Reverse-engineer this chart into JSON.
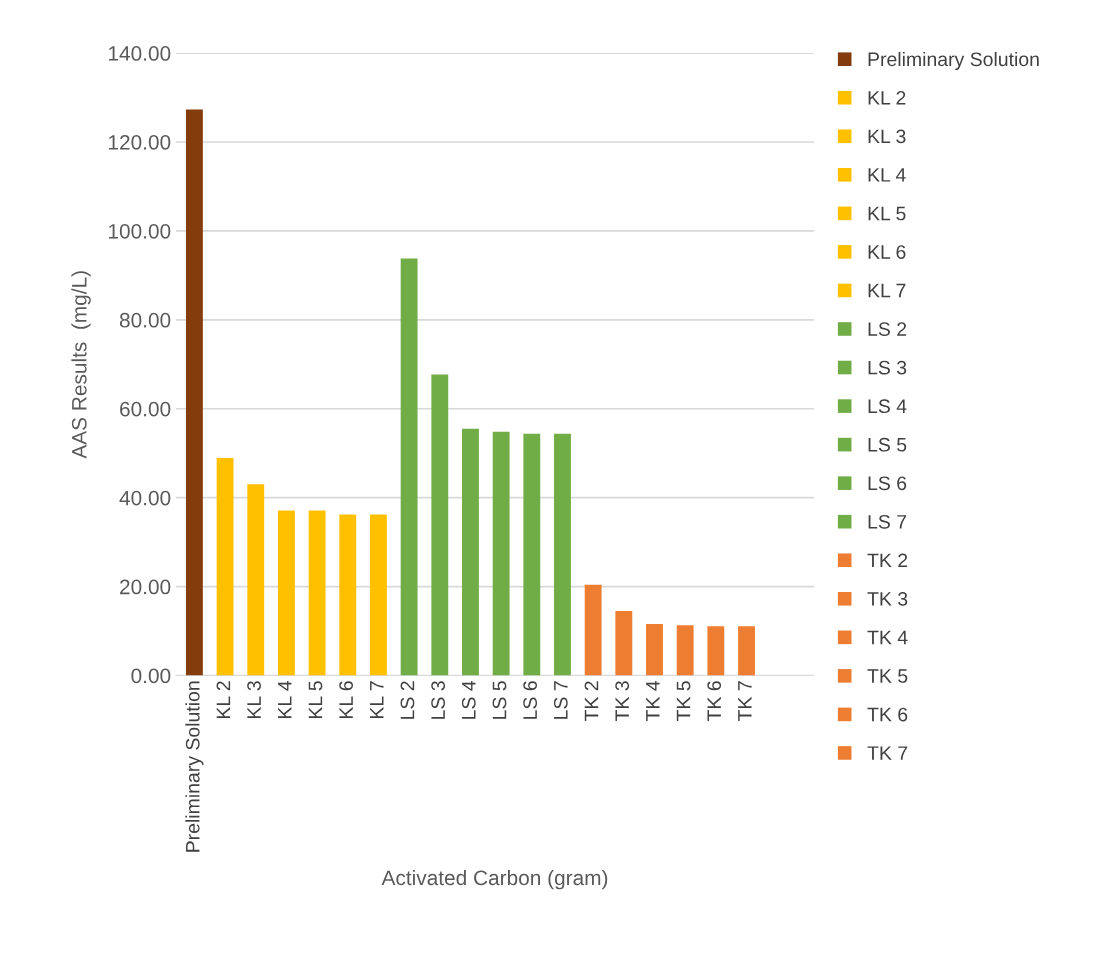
{
  "chart_data": {
    "type": "bar",
    "xlabel": "Activated Carbon (gram)",
    "ylabel": "AAS Results  (mg/L)",
    "categories": [
      "Preliminary Solution",
      "KL 2",
      "KL 3",
      "KL 4",
      "KL 5",
      "KL 6",
      "KL 7",
      "LS 2",
      "LS 3",
      "LS 4",
      "LS 5",
      "LS 6",
      "LS 7",
      "TK 2",
      "TK 3",
      "TK 4",
      "TK 5",
      "TK 6",
      "TK 7"
    ],
    "series": [
      {
        "name": "Preliminary Solution",
        "color": "#843c0c",
        "values": [
          127.3,
          null,
          null,
          null,
          null,
          null,
          null,
          null,
          null,
          null,
          null,
          null,
          null,
          null,
          null,
          null,
          null,
          null,
          null
        ]
      },
      {
        "name": "KL 2",
        "color": "#ffc000",
        "values": [
          null,
          48.9,
          null,
          null,
          null,
          null,
          null,
          null,
          null,
          null,
          null,
          null,
          null,
          null,
          null,
          null,
          null,
          null,
          null
        ]
      },
      {
        "name": "KL 3",
        "color": "#ffc000",
        "values": [
          null,
          null,
          43.0,
          null,
          null,
          null,
          null,
          null,
          null,
          null,
          null,
          null,
          null,
          null,
          null,
          null,
          null,
          null,
          null
        ]
      },
      {
        "name": "KL 4",
        "color": "#ffc000",
        "values": [
          null,
          null,
          null,
          37.1,
          null,
          null,
          null,
          null,
          null,
          null,
          null,
          null,
          null,
          null,
          null,
          null,
          null,
          null,
          null
        ]
      },
      {
        "name": "KL 5",
        "color": "#ffc000",
        "values": [
          null,
          null,
          null,
          null,
          37.1,
          null,
          null,
          null,
          null,
          null,
          null,
          null,
          null,
          null,
          null,
          null,
          null,
          null,
          null
        ]
      },
      {
        "name": "KL 6",
        "color": "#ffc000",
        "values": [
          null,
          null,
          null,
          null,
          null,
          36.2,
          null,
          null,
          null,
          null,
          null,
          null,
          null,
          null,
          null,
          null,
          null,
          null,
          null
        ]
      },
      {
        "name": "KL 7",
        "color": "#ffc000",
        "values": [
          null,
          null,
          null,
          null,
          null,
          null,
          36.2,
          null,
          null,
          null,
          null,
          null,
          null,
          null,
          null,
          null,
          null,
          null,
          null
        ]
      },
      {
        "name": "LS 2",
        "color": "#70ad47",
        "values": [
          null,
          null,
          null,
          null,
          null,
          null,
          null,
          93.8,
          null,
          null,
          null,
          null,
          null,
          null,
          null,
          null,
          null,
          null,
          null
        ]
      },
      {
        "name": "LS 3",
        "color": "#70ad47",
        "values": [
          null,
          null,
          null,
          null,
          null,
          null,
          null,
          null,
          67.7,
          null,
          null,
          null,
          null,
          null,
          null,
          null,
          null,
          null,
          null
        ]
      },
      {
        "name": "LS 4",
        "color": "#70ad47",
        "values": [
          null,
          null,
          null,
          null,
          null,
          null,
          null,
          null,
          null,
          55.5,
          null,
          null,
          null,
          null,
          null,
          null,
          null,
          null,
          null
        ]
      },
      {
        "name": "LS 5",
        "color": "#70ad47",
        "values": [
          null,
          null,
          null,
          null,
          null,
          null,
          null,
          null,
          null,
          null,
          54.8,
          null,
          null,
          null,
          null,
          null,
          null,
          null,
          null
        ]
      },
      {
        "name": "LS 6",
        "color": "#70ad47",
        "values": [
          null,
          null,
          null,
          null,
          null,
          null,
          null,
          null,
          null,
          null,
          null,
          54.4,
          null,
          null,
          null,
          null,
          null,
          null,
          null
        ]
      },
      {
        "name": "LS 7",
        "color": "#70ad47",
        "values": [
          null,
          null,
          null,
          null,
          null,
          null,
          null,
          null,
          null,
          null,
          null,
          null,
          54.4,
          null,
          null,
          null,
          null,
          null,
          null
        ]
      },
      {
        "name": "TK 2",
        "color": "#ed7d31",
        "values": [
          null,
          null,
          null,
          null,
          null,
          null,
          null,
          null,
          null,
          null,
          null,
          null,
          null,
          20.4,
          null,
          null,
          null,
          null,
          null
        ]
      },
      {
        "name": "TK 3",
        "color": "#ed7d31",
        "values": [
          null,
          null,
          null,
          null,
          null,
          null,
          null,
          null,
          null,
          null,
          null,
          null,
          null,
          null,
          14.5,
          null,
          null,
          null,
          null
        ]
      },
      {
        "name": "TK 4",
        "color": "#ed7d31",
        "values": [
          null,
          null,
          null,
          null,
          null,
          null,
          null,
          null,
          null,
          null,
          null,
          null,
          null,
          null,
          null,
          11.6,
          null,
          null,
          null
        ]
      },
      {
        "name": "TK 5",
        "color": "#ed7d31",
        "values": [
          null,
          null,
          null,
          null,
          null,
          null,
          null,
          null,
          null,
          null,
          null,
          null,
          null,
          null,
          null,
          null,
          11.3,
          null,
          null
        ]
      },
      {
        "name": "TK 6",
        "color": "#ed7d31",
        "values": [
          null,
          null,
          null,
          null,
          null,
          null,
          null,
          null,
          null,
          null,
          null,
          null,
          null,
          null,
          null,
          null,
          null,
          11.1,
          null
        ]
      },
      {
        "name": "TK 7",
        "color": "#ed7d31",
        "values": [
          null,
          null,
          null,
          null,
          null,
          null,
          null,
          null,
          null,
          null,
          null,
          null,
          null,
          null,
          null,
          null,
          null,
          null,
          11.1
        ]
      }
    ],
    "ylim": [
      0,
      140
    ],
    "yticks": [
      {
        "value": 0,
        "label": "0.00"
      },
      {
        "value": 20,
        "label": "20.00"
      },
      {
        "value": 40,
        "label": "40.00"
      },
      {
        "value": 60,
        "label": "60.00"
      },
      {
        "value": 80,
        "label": "80.00"
      },
      {
        "value": 100,
        "label": "100.00"
      },
      {
        "value": 120,
        "label": "120.00"
      },
      {
        "value": 140,
        "label": "140.00"
      }
    ],
    "grid": "y",
    "legend": "right"
  }
}
